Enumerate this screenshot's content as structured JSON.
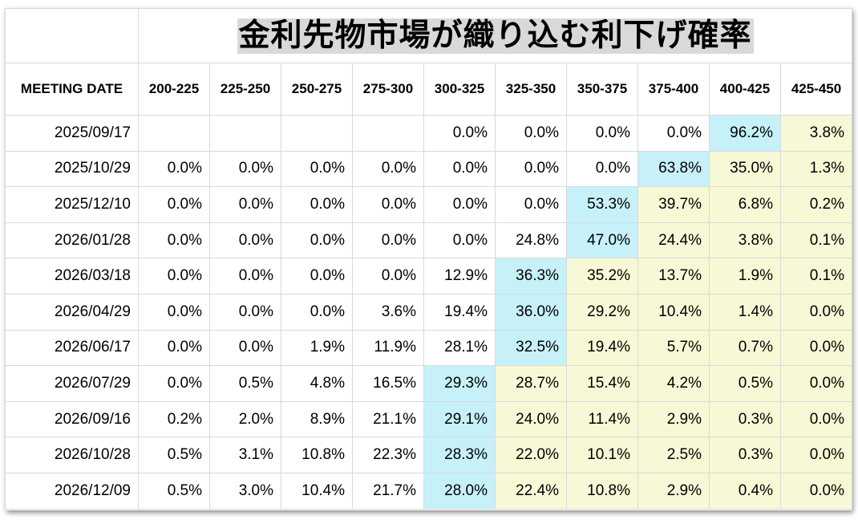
{
  "title": "金利先物市場が織り込む利下げ確率",
  "columns": {
    "meeting_date": "MEETING DATE",
    "ranges": [
      "200-225",
      "225-250",
      "250-275",
      "275-300",
      "300-325",
      "325-350",
      "350-375",
      "375-400",
      "400-425",
      "425-450"
    ]
  },
  "highlight_colors": {
    "cyan": "#c6f1f9",
    "yellow": "#f7f8d6"
  },
  "rows": [
    {
      "date": "2025/09/17",
      "values": [
        "",
        "",
        "",
        "",
        "0.0%",
        "0.0%",
        "0.0%",
        "0.0%",
        "96.2%",
        "3.8%"
      ],
      "highlight": [
        "",
        "",
        "",
        "",
        "",
        "",
        "",
        "",
        "cyan",
        "yellow"
      ]
    },
    {
      "date": "2025/10/29",
      "values": [
        "0.0%",
        "0.0%",
        "0.0%",
        "0.0%",
        "0.0%",
        "0.0%",
        "0.0%",
        "63.8%",
        "35.0%",
        "1.3%"
      ],
      "highlight": [
        "",
        "",
        "",
        "",
        "",
        "",
        "",
        "cyan",
        "yellow",
        "yellow"
      ]
    },
    {
      "date": "2025/12/10",
      "values": [
        "0.0%",
        "0.0%",
        "0.0%",
        "0.0%",
        "0.0%",
        "0.0%",
        "53.3%",
        "39.7%",
        "6.8%",
        "0.2%"
      ],
      "highlight": [
        "",
        "",
        "",
        "",
        "",
        "",
        "cyan",
        "yellow",
        "yellow",
        "yellow"
      ]
    },
    {
      "date": "2026/01/28",
      "values": [
        "0.0%",
        "0.0%",
        "0.0%",
        "0.0%",
        "0.0%",
        "24.8%",
        "47.0%",
        "24.4%",
        "3.8%",
        "0.1%"
      ],
      "highlight": [
        "",
        "",
        "",
        "",
        "",
        "",
        "cyan",
        "yellow",
        "yellow",
        "yellow"
      ]
    },
    {
      "date": "2026/03/18",
      "values": [
        "0.0%",
        "0.0%",
        "0.0%",
        "0.0%",
        "12.9%",
        "36.3%",
        "35.2%",
        "13.7%",
        "1.9%",
        "0.1%"
      ],
      "highlight": [
        "",
        "",
        "",
        "",
        "",
        "cyan",
        "yellow",
        "yellow",
        "yellow",
        "yellow"
      ]
    },
    {
      "date": "2026/04/29",
      "values": [
        "0.0%",
        "0.0%",
        "0.0%",
        "3.6%",
        "19.4%",
        "36.0%",
        "29.2%",
        "10.4%",
        "1.4%",
        "0.0%"
      ],
      "highlight": [
        "",
        "",
        "",
        "",
        "",
        "cyan",
        "yellow",
        "yellow",
        "yellow",
        "yellow"
      ]
    },
    {
      "date": "2026/06/17",
      "values": [
        "0.0%",
        "0.0%",
        "1.9%",
        "11.9%",
        "28.1%",
        "32.5%",
        "19.4%",
        "5.7%",
        "0.7%",
        "0.0%"
      ],
      "highlight": [
        "",
        "",
        "",
        "",
        "",
        "cyan",
        "yellow",
        "yellow",
        "yellow",
        "yellow"
      ]
    },
    {
      "date": "2026/07/29",
      "values": [
        "0.0%",
        "0.5%",
        "4.8%",
        "16.5%",
        "29.3%",
        "28.7%",
        "15.4%",
        "4.2%",
        "0.5%",
        "0.0%"
      ],
      "highlight": [
        "",
        "",
        "",
        "",
        "cyan",
        "yellow",
        "yellow",
        "yellow",
        "yellow",
        "yellow"
      ]
    },
    {
      "date": "2026/09/16",
      "values": [
        "0.2%",
        "2.0%",
        "8.9%",
        "21.1%",
        "29.1%",
        "24.0%",
        "11.4%",
        "2.9%",
        "0.3%",
        "0.0%"
      ],
      "highlight": [
        "",
        "",
        "",
        "",
        "cyan",
        "yellow",
        "yellow",
        "yellow",
        "yellow",
        "yellow"
      ]
    },
    {
      "date": "2026/10/28",
      "values": [
        "0.5%",
        "3.1%",
        "10.8%",
        "22.3%",
        "28.3%",
        "22.0%",
        "10.1%",
        "2.5%",
        "0.3%",
        "0.0%"
      ],
      "highlight": [
        "",
        "",
        "",
        "",
        "cyan",
        "yellow",
        "yellow",
        "yellow",
        "yellow",
        "yellow"
      ]
    },
    {
      "date": "2026/12/09",
      "values": [
        "0.5%",
        "3.0%",
        "10.4%",
        "21.7%",
        "28.0%",
        "22.4%",
        "10.8%",
        "2.9%",
        "0.4%",
        "0.0%"
      ],
      "highlight": [
        "",
        "",
        "",
        "",
        "cyan",
        "yellow",
        "yellow",
        "yellow",
        "yellow",
        "yellow"
      ]
    }
  ]
}
